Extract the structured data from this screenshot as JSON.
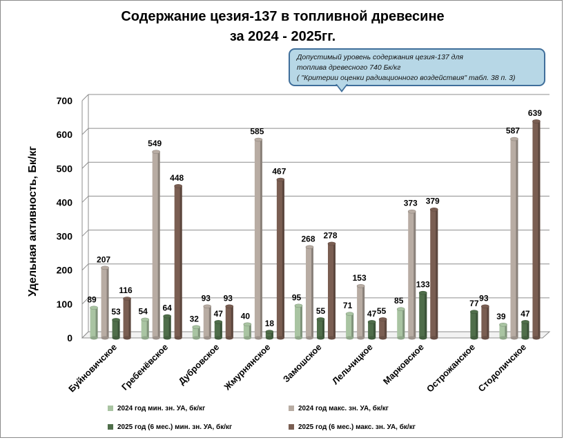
{
  "chart_data": {
    "type": "bar",
    "title_lines": [
      "Содержание цезия-137 в топливной древесине",
      "за 2024 - 2025гг."
    ],
    "ylabel": "Удельная активность, Бк/кг",
    "xlabel": "",
    "ylim": [
      0,
      700
    ],
    "yticks": [
      0,
      100,
      200,
      300,
      400,
      500,
      600,
      700
    ],
    "grid": true,
    "legend_position": "bottom",
    "categories": [
      "Буйновичское",
      "Гребенёвское",
      "Дубровское",
      "Жмурнянское",
      "Замошское",
      "Лельчицкое",
      "Марковское",
      "Острожанское",
      "Стодоличское"
    ],
    "series": [
      {
        "name": "2024 год мин. зн. УА, бк/кг",
        "color": "#a9c4a2",
        "values": [
          89,
          54,
          32,
          40,
          95,
          71,
          85,
          null,
          39
        ]
      },
      {
        "name": "2024 год макс.  зн. УА, бк/кг",
        "color": "#b8aca3",
        "values": [
          207,
          549,
          93,
          585,
          268,
          153,
          373,
          null,
          587
        ]
      },
      {
        "name": "2025 год (6 мес.) мин. зн. УА, бк/кг",
        "color": "#4f6e4a",
        "values": [
          53,
          64,
          47,
          18,
          55,
          47,
          133,
          77,
          47
        ]
      },
      {
        "name": "2025 год (6 мес.) макс.  зн. УА, бк/кг",
        "color": "#7a5e52",
        "values": [
          116,
          448,
          93,
          467,
          278,
          55,
          379,
          93,
          639
        ]
      }
    ],
    "annotation": [
      "Допустимый уровень содержания цезия-137 для",
      "топлива древесного 740 Бк/кг",
      "( \"Критерии оценки радиационного воздействия\" табл. 38 п. 3)"
    ]
  }
}
